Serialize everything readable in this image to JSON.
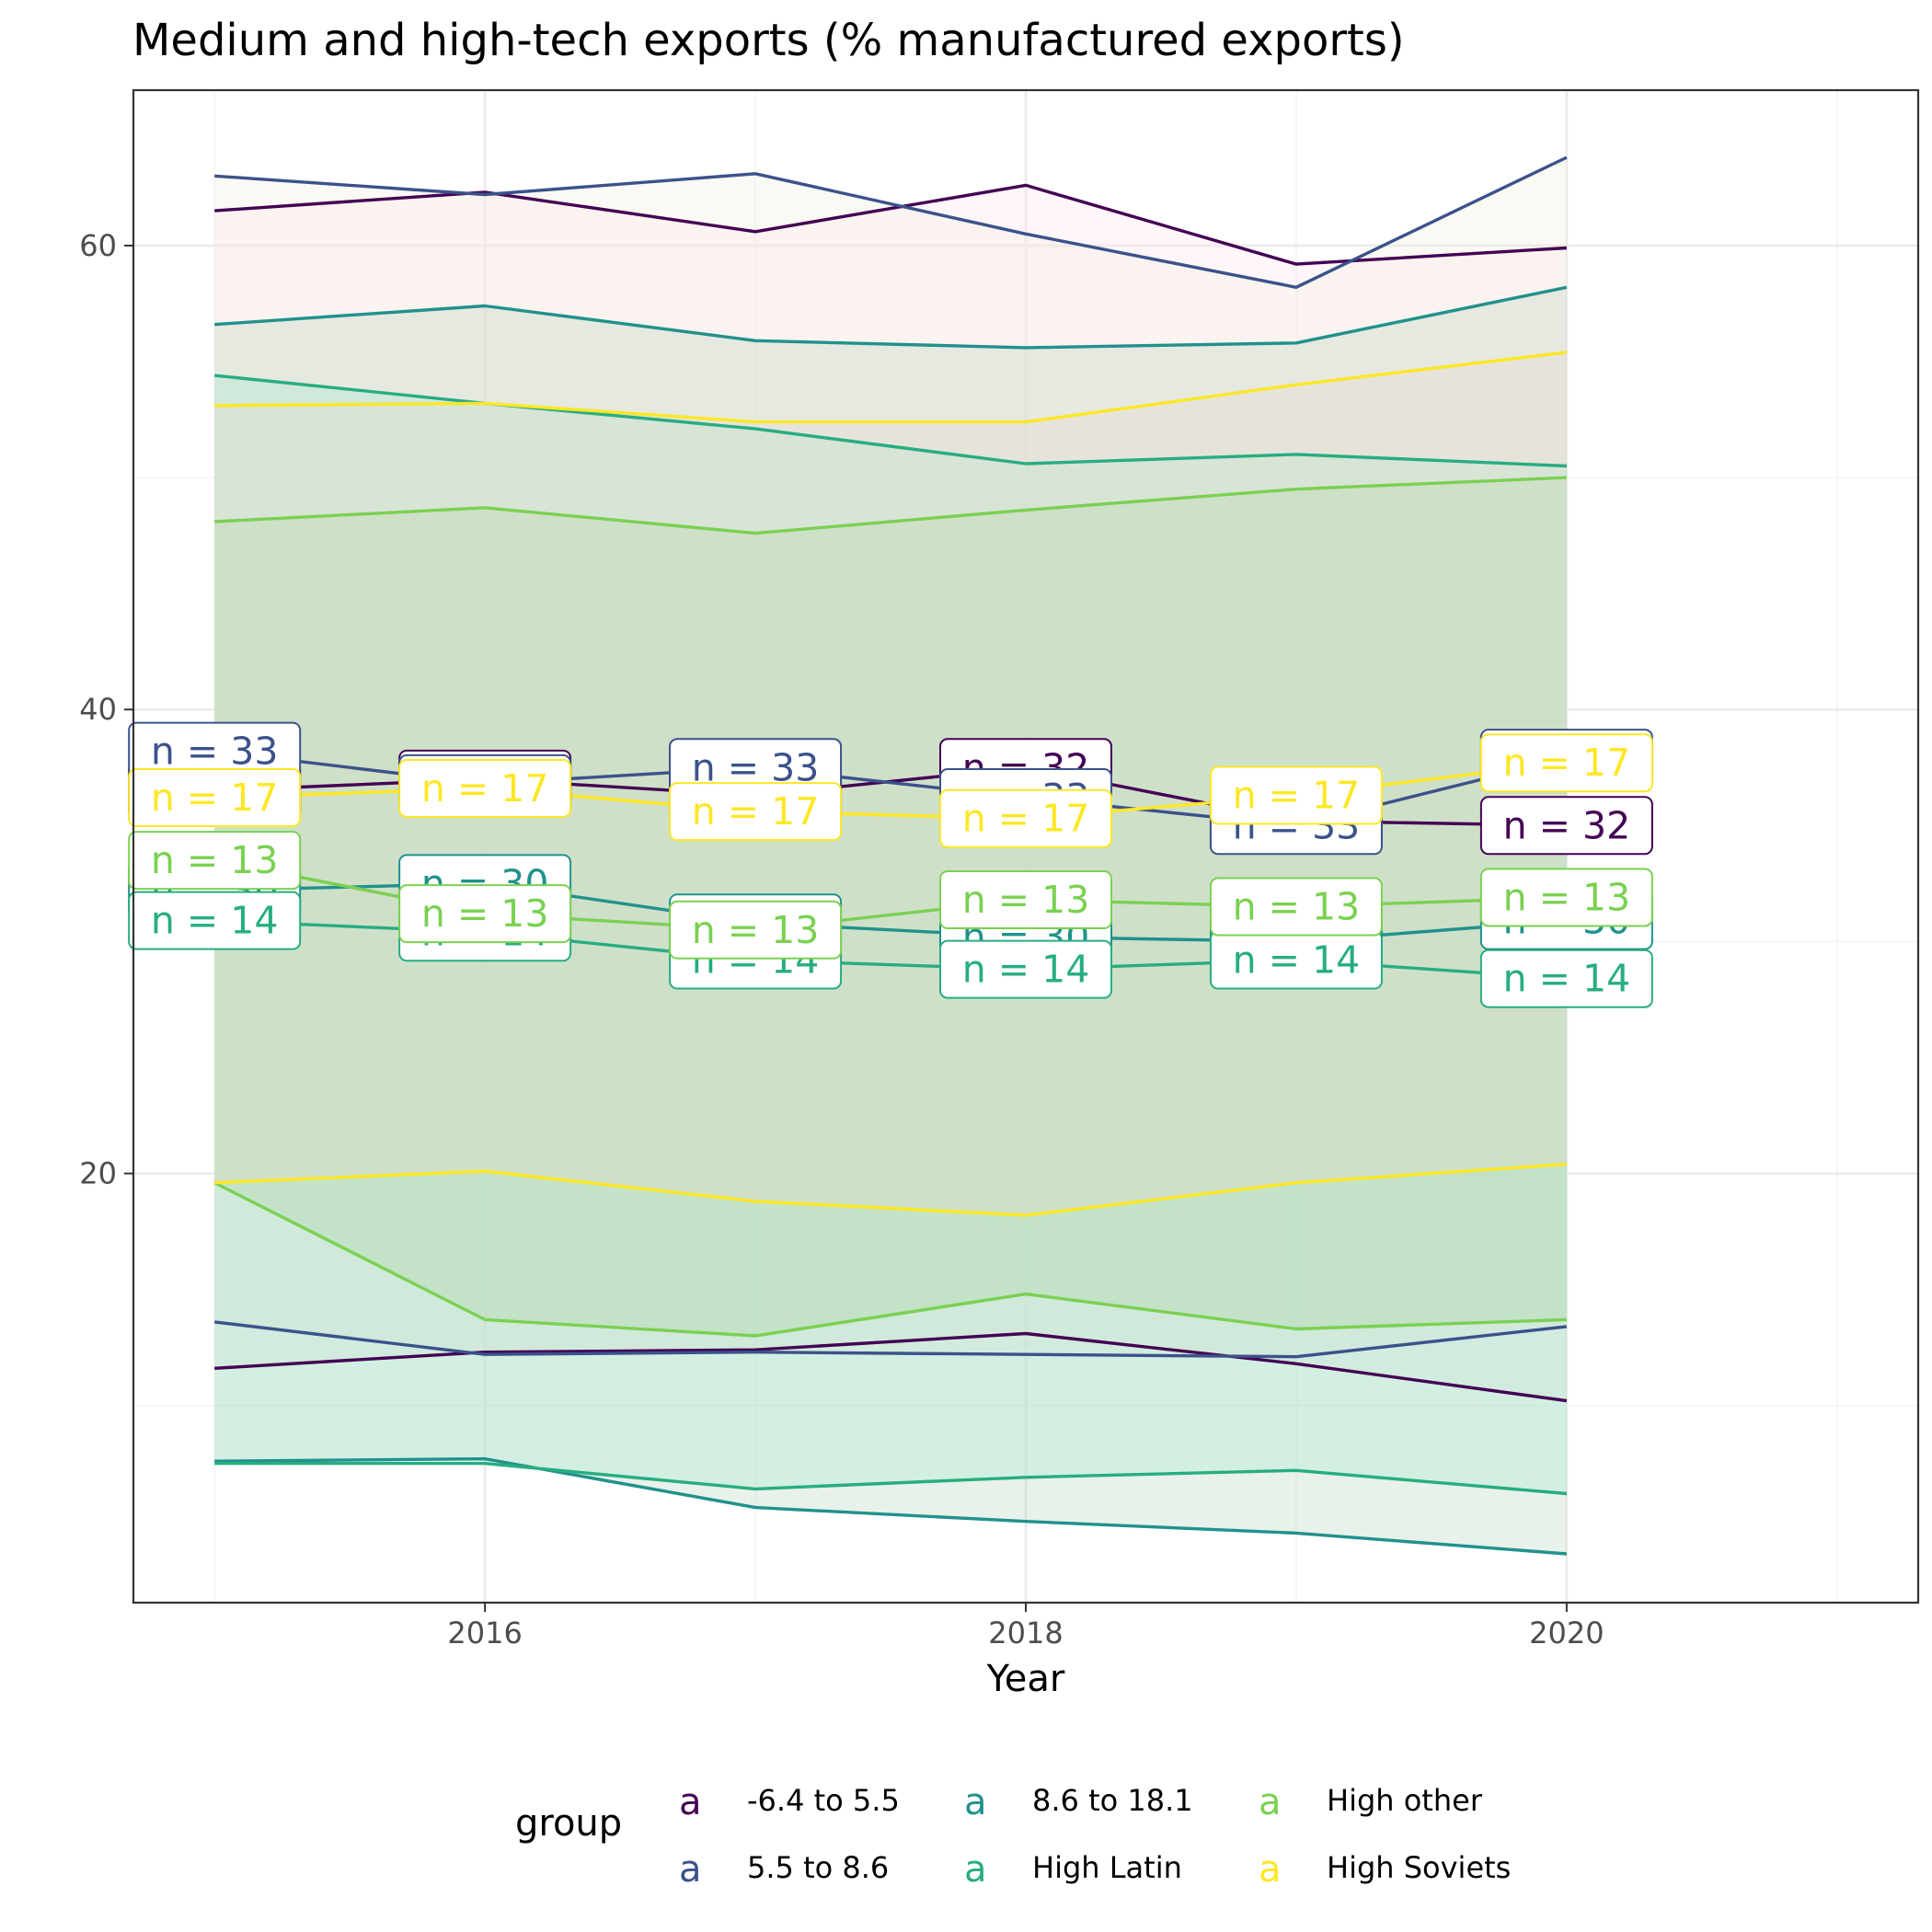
{
  "chart_data": {
    "type": "line",
    "title": "Medium and high-tech exports (% manufactured exports)",
    "xlabel": "Year",
    "ylabel": "",
    "xlim": [
      2014.7,
      2021.3
    ],
    "ylim": [
      1.5,
      66.7
    ],
    "x_ticks": [
      2016,
      2018,
      2020
    ],
    "y_ticks": [
      20,
      40,
      60
    ],
    "grid": true,
    "legend": {
      "title": "group",
      "position": "bottom",
      "entries": [
        "-6.4 to 5.5",
        "5.5 to 8.6",
        "8.6 to 18.1",
        "High Latin",
        "High other",
        "High Soviets"
      ]
    },
    "x": [
      2015,
      2016,
      2017,
      2018,
      2019,
      2020
    ],
    "series": [
      {
        "name": "-6.4 to 5.5",
        "color": "#440154",
        "mean": [
          36.5,
          37.0,
          36.3,
          37.5,
          35.2,
          35.0
        ],
        "upper": [
          61.5,
          62.3,
          60.6,
          62.6,
          59.2,
          59.9
        ],
        "lower": [
          11.6,
          12.3,
          12.4,
          13.1,
          11.8,
          10.2
        ],
        "n_labels": [
          "n = 32",
          "n = 32",
          "n = 32",
          "n = 32",
          "n = 32",
          "n = 32"
        ],
        "band_fill": "#ffe6ee"
      },
      {
        "name": "5.5 to 8.6",
        "color": "#3b528b",
        "mean": [
          38.2,
          36.8,
          37.5,
          36.2,
          35.0,
          37.9
        ],
        "upper": [
          63.0,
          62.2,
          63.1,
          60.5,
          58.2,
          63.8
        ],
        "lower": [
          13.6,
          12.2,
          12.3,
          12.2,
          12.1,
          13.4
        ],
        "n_labels": [
          "n = 33",
          "n = 33",
          "n = 33",
          "n = 33",
          "n = 33",
          "n = 33"
        ],
        "band_fill": "#f2eedc"
      },
      {
        "name": "8.6 to 18.1",
        "color": "#21918c",
        "mean": [
          32.2,
          32.5,
          30.8,
          30.2,
          30.0,
          30.9
        ],
        "upper": [
          56.6,
          57.4,
          55.9,
          55.6,
          55.8,
          58.2
        ],
        "lower": [
          7.6,
          7.7,
          5.6,
          5.0,
          4.5,
          3.6
        ],
        "n_labels": [
          "n = 30",
          "n = 30",
          "n = 30",
          "n = 30",
          "n = 30",
          "n = 30"
        ],
        "band_fill": "#c0d8c5"
      },
      {
        "name": "High Latin",
        "color": "#27ad81",
        "mean": [
          30.9,
          30.4,
          29.2,
          28.8,
          29.2,
          28.4
        ],
        "upper": [
          54.4,
          53.2,
          52.1,
          50.6,
          51.0,
          50.5
        ],
        "lower": [
          7.5,
          7.5,
          6.4,
          6.9,
          7.2,
          6.2
        ],
        "n_labels": [
          "n = 14",
          "n = 14",
          "n = 14",
          "n = 14",
          "n = 14",
          "n = 14"
        ],
        "band_fill": "#a8ead2"
      },
      {
        "name": "High other",
        "color": "#7ad151",
        "mean": [
          33.5,
          31.2,
          30.5,
          31.8,
          31.5,
          31.9
        ],
        "upper": [
          48.1,
          48.7,
          47.6,
          48.6,
          49.5,
          50.0
        ],
        "lower": [
          19.6,
          13.7,
          13.0,
          14.8,
          13.3,
          13.7
        ],
        "n_labels": [
          "n = 13",
          "n = 13",
          "n = 13",
          "n = 13",
          "n = 13",
          "n = 13"
        ],
        "band_fill": "#a9d6a3"
      },
      {
        "name": "High Soviets",
        "color": "#fde725",
        "mean": [
          36.2,
          36.6,
          35.6,
          35.3,
          36.3,
          37.7
        ],
        "upper": [
          53.1,
          53.2,
          52.4,
          52.4,
          54.0,
          55.4
        ],
        "lower": [
          19.6,
          20.1,
          18.8,
          18.2,
          19.6,
          20.4
        ],
        "n_labels": [
          "n = 17",
          "n = 17",
          "n = 17",
          "n = 17",
          "n = 17",
          "n = 17"
        ],
        "band_fill": "#e6dccd"
      }
    ],
    "colors": {
      "panel_fill": "#ffffff",
      "grid_major": "#ebebeb",
      "grid_minor": "#f2f2f2",
      "panel_border": "#333333",
      "band_overlap": "#c3cbd3"
    }
  },
  "legend_glyph": "a"
}
